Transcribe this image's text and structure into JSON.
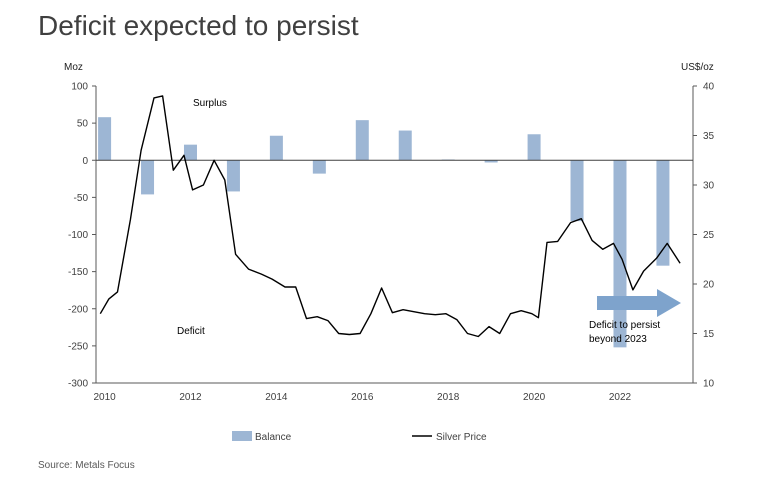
{
  "title": "Deficit expected to persist",
  "source": "Source: Metals Focus",
  "colors": {
    "bar": "#9db6d4",
    "line": "#000000",
    "axis": "#595959",
    "arrow": "#7ea3cc"
  },
  "chart_data": {
    "type": "bar",
    "left_unit": "Moz",
    "right_unit": "US$/oz",
    "left_ylim": [
      -300,
      100
    ],
    "left_ticks": [
      100,
      50,
      0,
      -50,
      -100,
      -150,
      -200,
      -250,
      -300
    ],
    "right_ylim": [
      10,
      40
    ],
    "right_ticks": [
      40,
      35,
      30,
      25,
      20,
      15,
      10
    ],
    "xlim": [
      2009.8,
      2023.7
    ],
    "x_ticks": [
      2010,
      2012,
      2014,
      2016,
      2018,
      2020,
      2022
    ],
    "grid": false,
    "legend": "bottom",
    "annotations": {
      "surplus": "Surplus",
      "deficit": "Deficit",
      "outlook_line1": "Deficit to persist",
      "outlook_line2": "beyond 2023"
    },
    "series": [
      {
        "name": "Balance",
        "type": "bar",
        "axis": "left",
        "x": [
          2010,
          2011,
          2012,
          2013,
          2014,
          2015,
          2016,
          2017,
          2018,
          2019,
          2020,
          2021,
          2022,
          2023
        ],
        "values": [
          58,
          -46,
          21,
          -42,
          33,
          -18,
          54,
          40,
          1,
          -3,
          35,
          -82,
          -252,
          -142
        ]
      },
      {
        "name": "Silver Price",
        "type": "line",
        "axis": "right",
        "x": [
          2009.9,
          2010.1,
          2010.3,
          2010.6,
          2010.85,
          2011.15,
          2011.35,
          2011.6,
          2011.85,
          2012.05,
          2012.3,
          2012.55,
          2012.8,
          2013.05,
          2013.35,
          2013.65,
          2013.9,
          2014.2,
          2014.45,
          2014.7,
          2014.95,
          2015.2,
          2015.45,
          2015.7,
          2015.95,
          2016.2,
          2016.45,
          2016.7,
          2016.95,
          2017.2,
          2017.45,
          2017.7,
          2017.95,
          2018.2,
          2018.45,
          2018.7,
          2018.95,
          2019.2,
          2019.45,
          2019.7,
          2019.95,
          2020.1,
          2020.3,
          2020.55,
          2020.85,
          2021.1,
          2021.35,
          2021.6,
          2021.85,
          2022.05,
          2022.3,
          2022.55,
          2022.85,
          2023.1,
          2023.4
        ],
        "values": [
          17,
          18.5,
          19.2,
          26.5,
          33.5,
          38.8,
          39,
          31.5,
          33,
          29.5,
          30,
          32.5,
          30.5,
          23,
          21.5,
          21,
          20.5,
          19.7,
          19.7,
          16.5,
          16.7,
          16.3,
          15,
          14.9,
          15,
          17,
          19.6,
          17.1,
          17.4,
          17.2,
          17,
          16.9,
          17,
          16.4,
          15,
          14.7,
          15.7,
          15,
          17,
          17.3,
          17,
          16.6,
          24.2,
          24.3,
          26.2,
          26.6,
          24.4,
          23.5,
          24.1,
          22.5,
          19.4,
          21.3,
          22.6,
          24.1,
          22.1
        ]
      }
    ]
  }
}
